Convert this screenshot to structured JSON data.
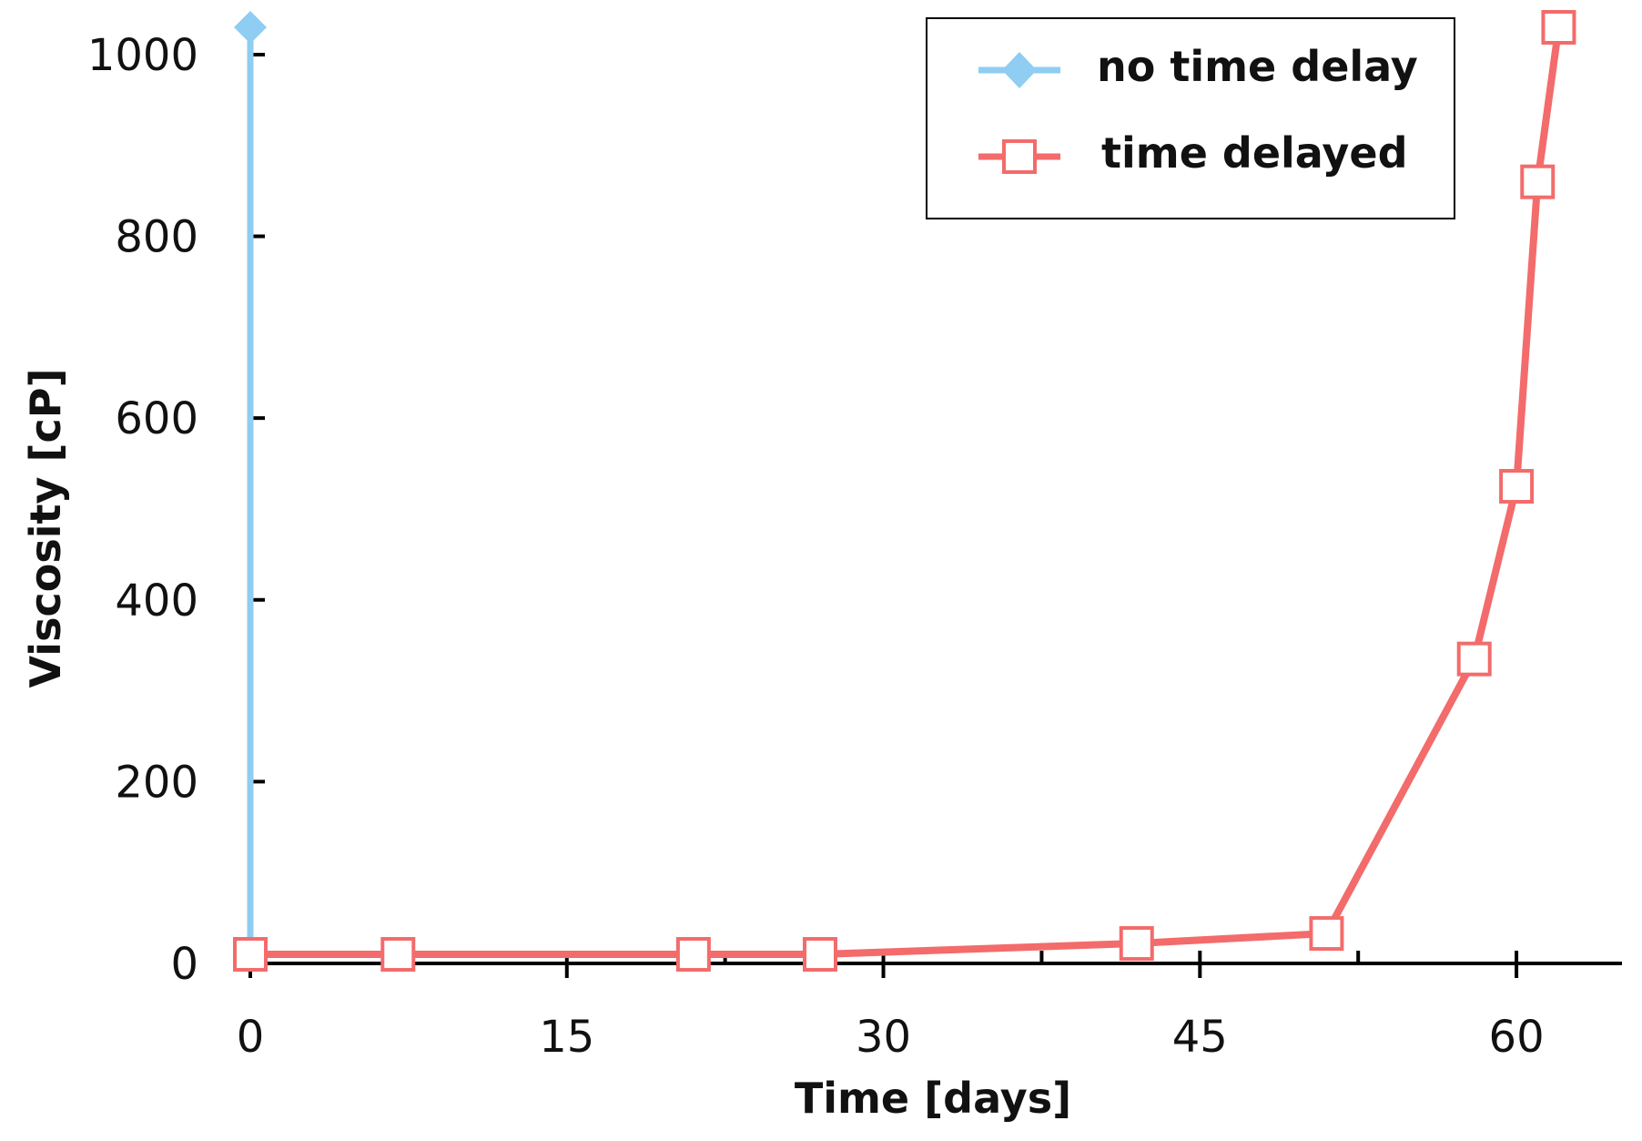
{
  "chart_data": {
    "type": "line",
    "title": "",
    "xlabel": "Time [days]",
    "ylabel": "Viscosity [cP]",
    "xlim": [
      0,
      65
    ],
    "ylim": [
      0,
      1030
    ],
    "xticks": [
      0,
      15,
      30,
      45,
      60
    ],
    "yticks": [
      0,
      200,
      400,
      600,
      800,
      1000
    ],
    "grid": false,
    "legend_position": "top-right",
    "series": [
      {
        "name": "no time delay",
        "color": "#8fcdf2",
        "marker": "diamond-filled",
        "x": [
          0,
          0
        ],
        "y": [
          10,
          1030
        ]
      },
      {
        "name": "time delayed",
        "color": "#f36b6b",
        "marker": "square-open",
        "x": [
          0,
          7,
          21,
          27,
          42,
          51,
          58,
          60,
          61,
          62
        ],
        "y": [
          10,
          10,
          10,
          10,
          22,
          33,
          335,
          525,
          860,
          1030
        ]
      }
    ]
  }
}
